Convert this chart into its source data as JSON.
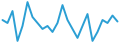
{
  "x": [
    0,
    1,
    2,
    3,
    4,
    5,
    6,
    7,
    8,
    9,
    10,
    11,
    12,
    13,
    14,
    15,
    16,
    17,
    18,
    19,
    20,
    21,
    22,
    23
  ],
  "y": [
    22,
    20,
    28,
    8,
    18,
    34,
    24,
    20,
    16,
    18,
    14,
    20,
    32,
    22,
    16,
    10,
    18,
    26,
    8,
    14,
    22,
    20,
    25,
    21
  ],
  "line_color": "#2b9fd4",
  "linewidth": 1.4,
  "background_color": "#ffffff"
}
